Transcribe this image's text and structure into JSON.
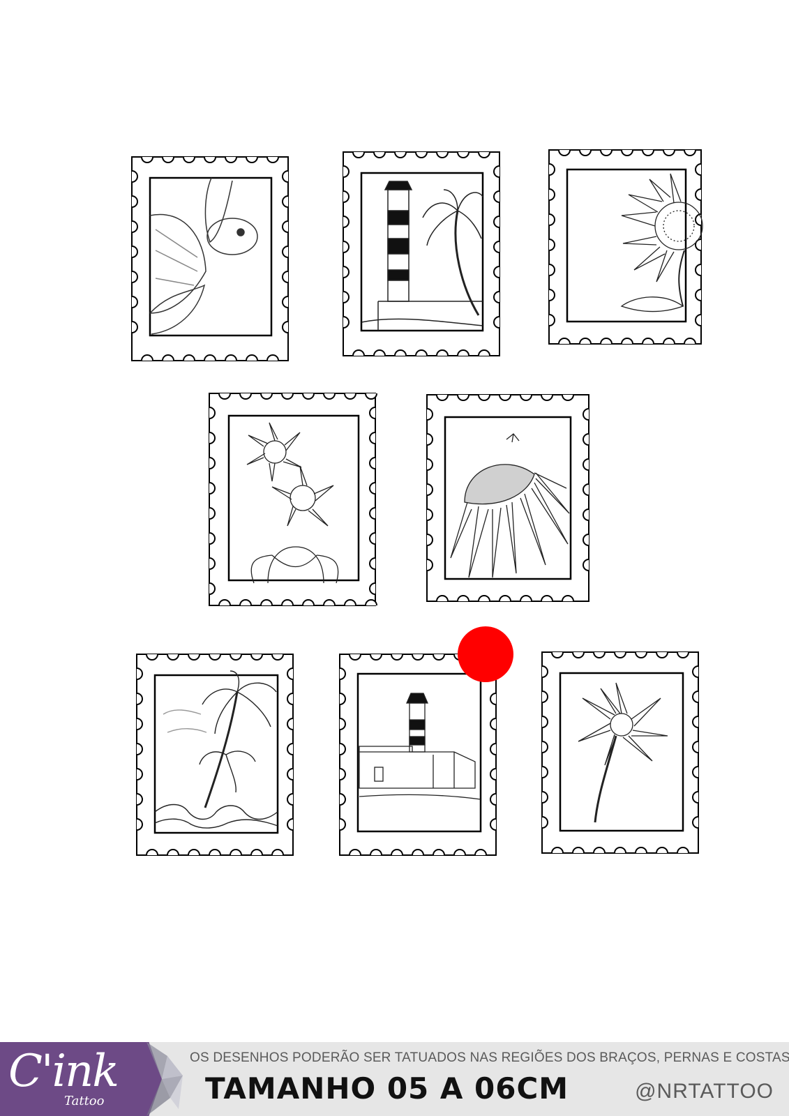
{
  "footer": {
    "brand_logo_text": "C'ink",
    "brand_logo_sub": "Tattoo",
    "notice": "OS DESENHOS PODERÃO SER TATUADOS NAS REGIÕES DOS BRAÇOS, PERNAS E COSTAS.",
    "size_label": "TAMANHO 05 A 06CM",
    "handle": "@NRTATTOO"
  },
  "stamps": [
    {
      "subject": "sea-turtle"
    },
    {
      "subject": "lighthouse-palm"
    },
    {
      "subject": "sunflower-half"
    },
    {
      "subject": "woman-flowers-head"
    },
    {
      "subject": "echinacea-butterfly"
    },
    {
      "subject": "palm-trees-waves"
    },
    {
      "subject": "lighthouse-fort"
    },
    {
      "subject": "daisy"
    }
  ],
  "colors": {
    "accent_dot": "#ff0000",
    "brand_purple": "#6d4a86",
    "footer_bg": "#e6e6e6"
  }
}
